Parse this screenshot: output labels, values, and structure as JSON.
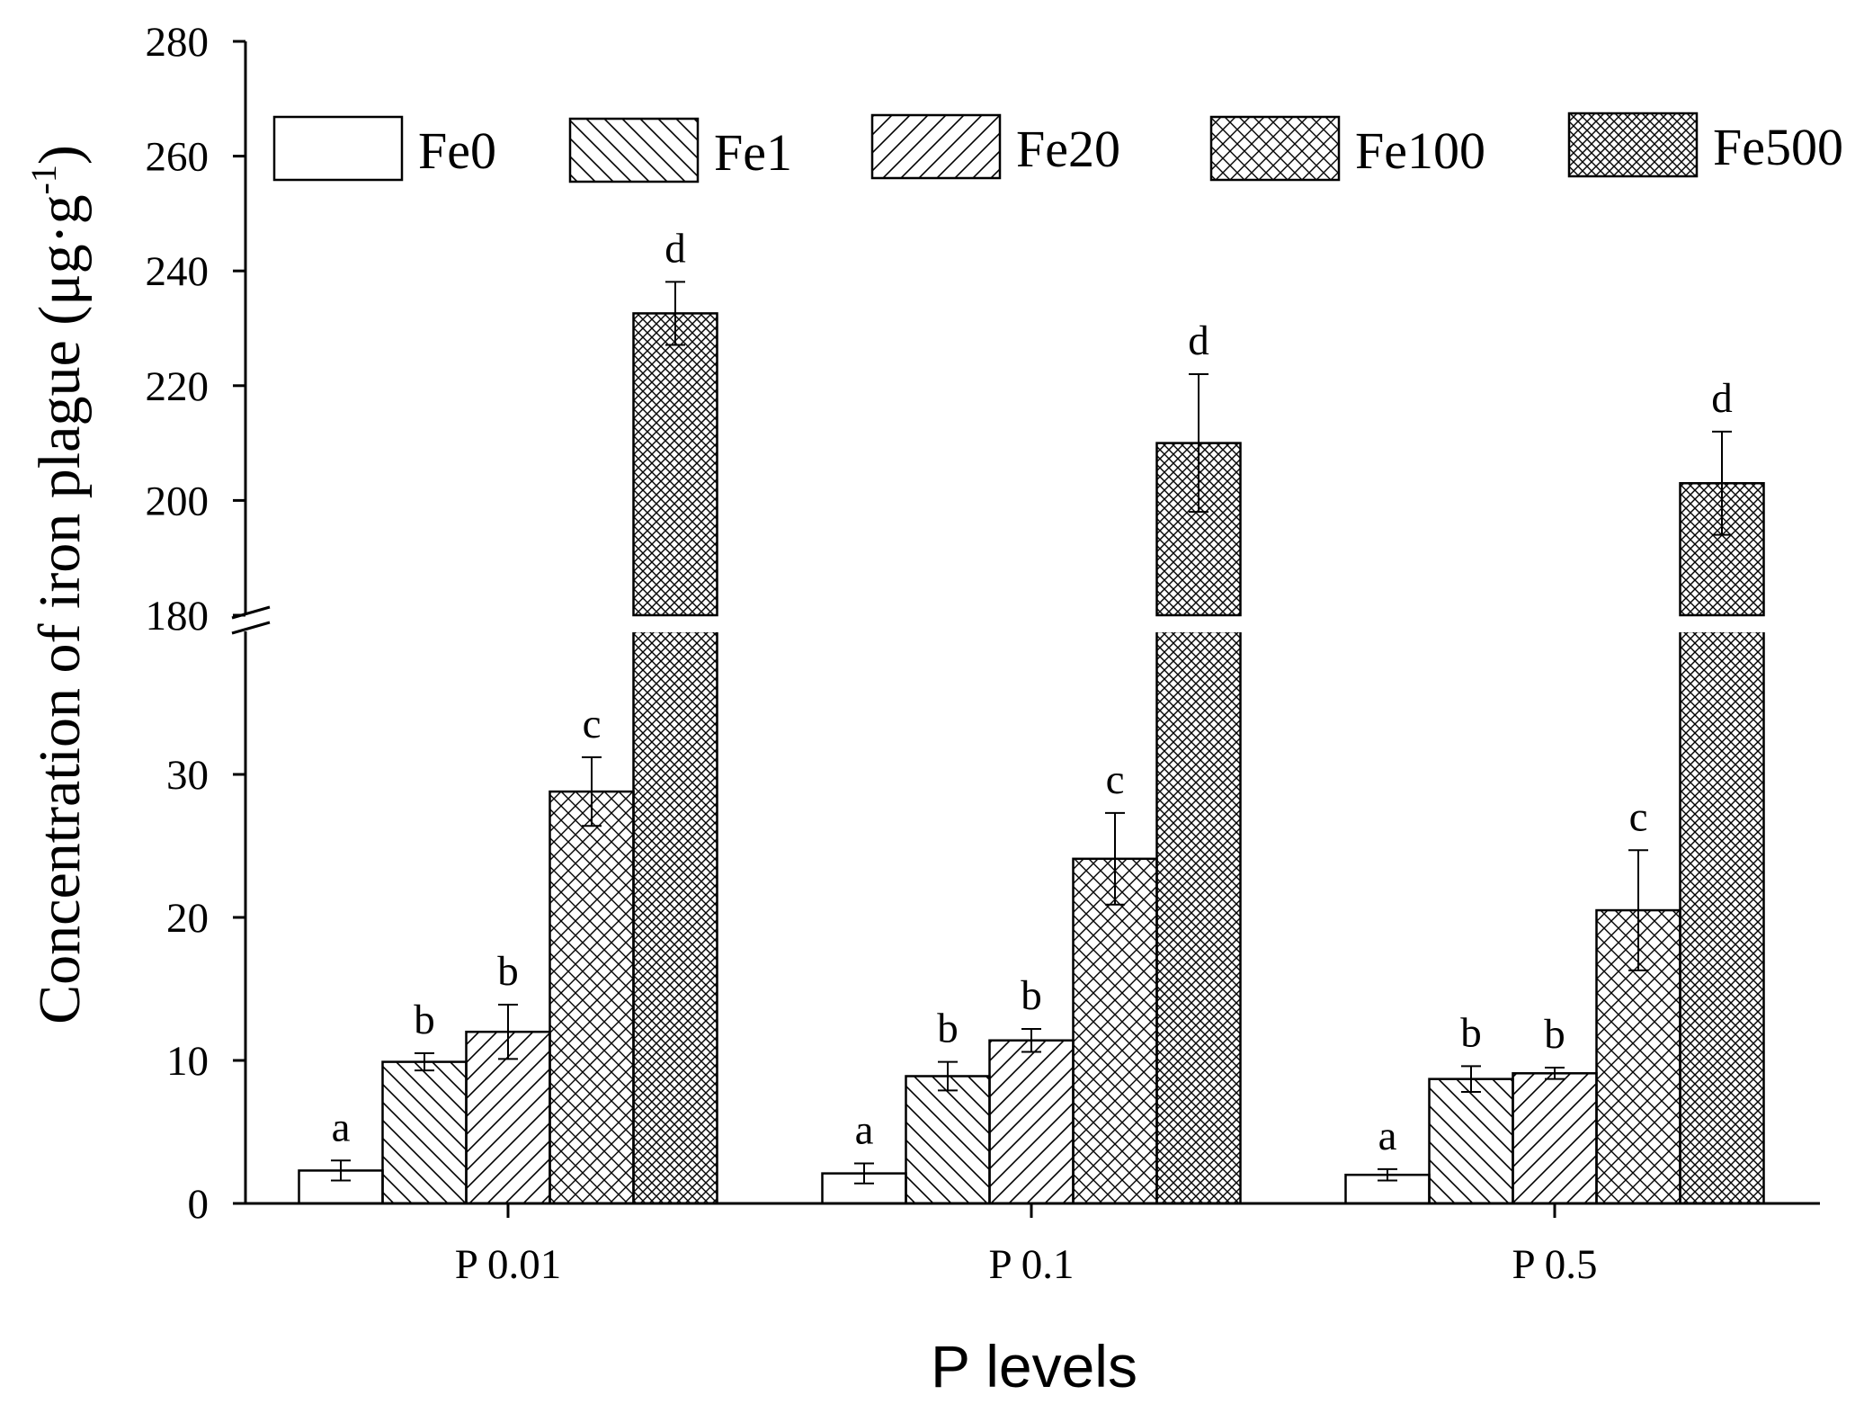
{
  "chart_data": {
    "type": "bar",
    "title": "",
    "xlabel": "P levels",
    "ylabel": "Concentration of iron plague (μg·g",
    "ylabel_sup": "-1",
    "ylabel_close": ")",
    "categories": [
      "P 0.01",
      "P 0.1",
      "P 0.5"
    ],
    "y_axis_break": {
      "lower_range": [
        0,
        40
      ],
      "upper_range": [
        180,
        280
      ]
    },
    "yticks_lower": [
      0,
      10,
      20,
      30
    ],
    "yticks_upper": [
      180,
      200,
      220,
      240,
      260,
      280
    ],
    "series": [
      {
        "name": "Fe0",
        "pattern": "none",
        "values": [
          2.3,
          2.1,
          2.0
        ],
        "errors": [
          0.7,
          0.7,
          0.4
        ],
        "letters": [
          "a",
          "a",
          "a"
        ]
      },
      {
        "name": "Fe1",
        "pattern": "backslash",
        "values": [
          9.9,
          8.9,
          8.7
        ],
        "errors": [
          0.6,
          1.0,
          0.9
        ],
        "letters": [
          "b",
          "b",
          "b"
        ]
      },
      {
        "name": "Fe20",
        "pattern": "slash",
        "values": [
          12.0,
          11.4,
          9.1
        ],
        "errors": [
          1.9,
          0.8,
          0.4
        ],
        "letters": [
          "b",
          "b",
          "b"
        ]
      },
      {
        "name": "Fe100",
        "pattern": "cross",
        "values": [
          28.8,
          24.1,
          20.5
        ],
        "errors": [
          2.4,
          3.2,
          4.2
        ],
        "letters": [
          "c",
          "c",
          "c"
        ]
      },
      {
        "name": "Fe500",
        "pattern": "dense-cross",
        "values": [
          232.6,
          210.0,
          203.0
        ],
        "errors": [
          5.5,
          12.0,
          9.0
        ],
        "letters": [
          "d",
          "d",
          "d"
        ]
      }
    ],
    "legend_position": "top"
  }
}
